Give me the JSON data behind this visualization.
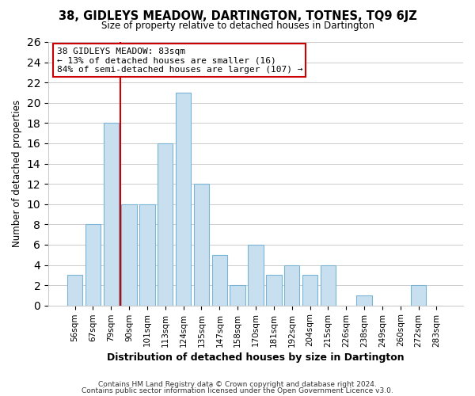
{
  "title": "38, GIDLEYS MEADOW, DARTINGTON, TOTNES, TQ9 6JZ",
  "subtitle": "Size of property relative to detached houses in Dartington",
  "xlabel": "Distribution of detached houses by size in Dartington",
  "ylabel": "Number of detached properties",
  "bar_labels": [
    "56sqm",
    "67sqm",
    "79sqm",
    "90sqm",
    "101sqm",
    "113sqm",
    "124sqm",
    "135sqm",
    "147sqm",
    "158sqm",
    "170sqm",
    "181sqm",
    "192sqm",
    "204sqm",
    "215sqm",
    "226sqm",
    "238sqm",
    "249sqm",
    "260sqm",
    "272sqm",
    "283sqm"
  ],
  "bar_values": [
    3,
    8,
    18,
    10,
    10,
    16,
    21,
    12,
    5,
    2,
    6,
    3,
    4,
    3,
    4,
    0,
    1,
    0,
    0,
    2,
    0
  ],
  "bar_color": "#c8dff0",
  "bar_edge_color": "#7ab4d4",
  "vline_color": "#cc0000",
  "annotation_line1": "38 GIDLEYS MEADOW: 83sqm",
  "annotation_line2": "← 13% of detached houses are smaller (16)",
  "annotation_line3": "84% of semi-detached houses are larger (107) →",
  "ylim_max": 26,
  "yticks": [
    0,
    2,
    4,
    6,
    8,
    10,
    12,
    14,
    16,
    18,
    20,
    22,
    24,
    26
  ],
  "footnote1": "Contains HM Land Registry data © Crown copyright and database right 2024.",
  "footnote2": "Contains public sector information licensed under the Open Government Licence v3.0.",
  "background_color": "#ffffff",
  "grid_color": "#cccccc"
}
